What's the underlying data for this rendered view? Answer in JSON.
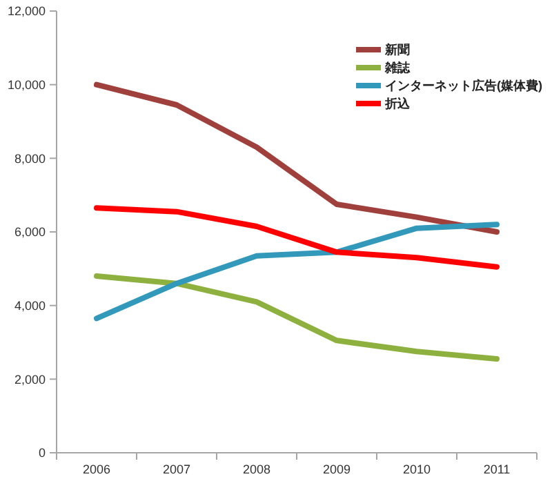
{
  "chart_data": {
    "type": "line",
    "categories": [
      "2006",
      "2007",
      "2008",
      "2009",
      "2010",
      "2011"
    ],
    "series": [
      {
        "name": "新聞",
        "color": "#a0403c",
        "values": [
          10000,
          9450,
          8300,
          6750,
          6400,
          6000
        ]
      },
      {
        "name": "雑誌",
        "color": "#8db03e",
        "values": [
          4800,
          4600,
          4100,
          3050,
          2750,
          2550
        ]
      },
      {
        "name": "インターネット広告(媒体費)",
        "color": "#3399bb",
        "values": [
          3650,
          4600,
          5350,
          5450,
          6100,
          6200
        ]
      },
      {
        "name": "折込",
        "color": "#ff0000",
        "values": [
          6650,
          6550,
          6150,
          5450,
          5300,
          5050
        ]
      }
    ],
    "ylim": [
      0,
      12000
    ],
    "yticks": [
      {
        "value": 0,
        "label": "0"
      },
      {
        "value": 2000,
        "label": "2,000"
      },
      {
        "value": 4000,
        "label": "4,000"
      },
      {
        "value": 6000,
        "label": "6,000"
      },
      {
        "value": 8000,
        "label": "8,000"
      },
      {
        "value": 10000,
        "label": "10,000"
      },
      {
        "value": 12000,
        "label": "12,000"
      }
    ],
    "grid": false,
    "legend": "top right",
    "marker": "none",
    "line_style": "solid"
  }
}
